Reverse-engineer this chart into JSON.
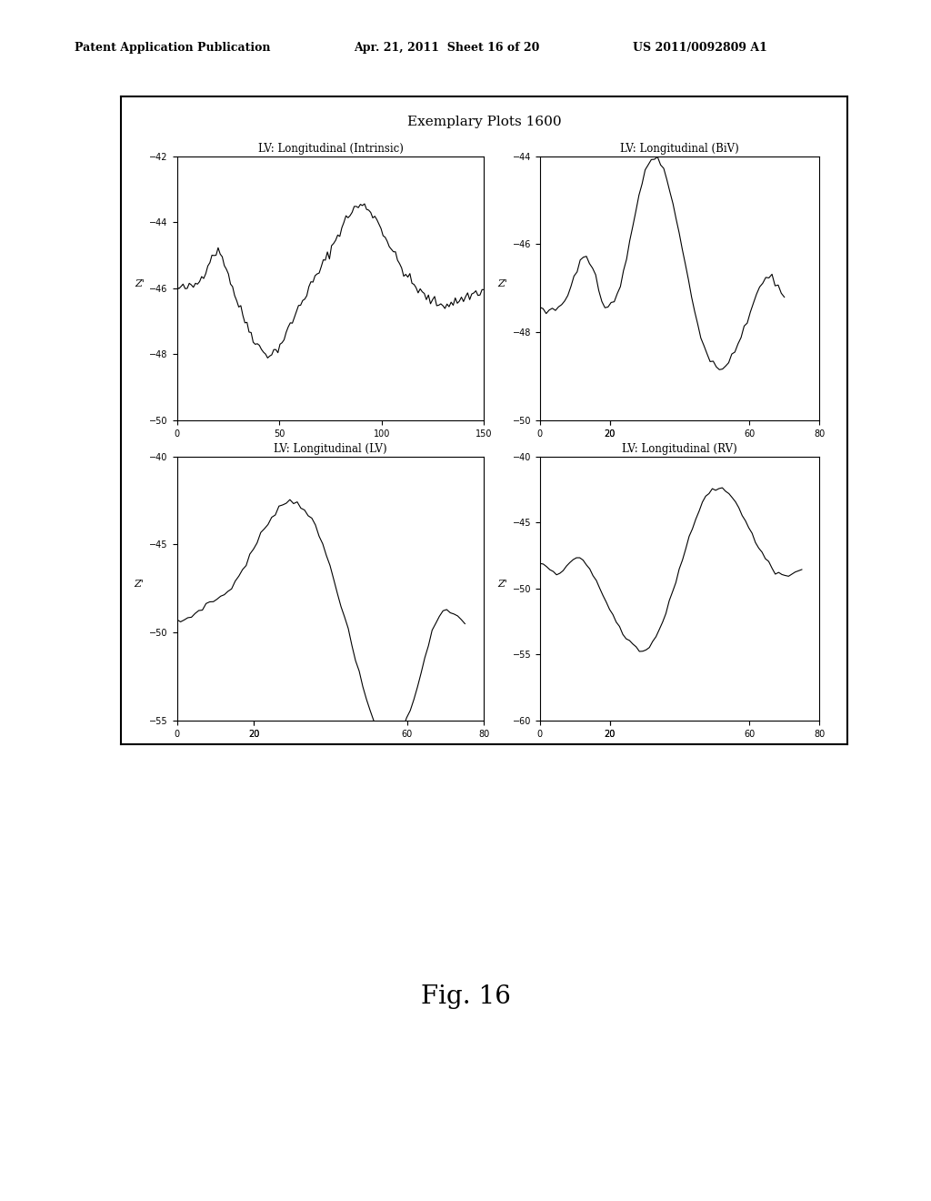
{
  "title": "Exemplary Plots 1600",
  "header_left": "Patent Application Publication",
  "header_mid": "Apr. 21, 2011  Sheet 16 of 20",
  "header_right": "US 2011/0092809 A1",
  "fig_label": "Fig. 16",
  "subplots": [
    {
      "title": "LV: Longitudinal (Intrinsic)",
      "ylabel": "Z'",
      "xlabel": "",
      "xlim": [
        0,
        150
      ],
      "ylim": [
        -50,
        -42
      ],
      "xticks": [
        0,
        50,
        100,
        150
      ],
      "yticks": [
        -50,
        -48,
        -46,
        -44,
        -42
      ]
    },
    {
      "title": "LV: Longitudinal (BiV)",
      "ylabel": "Z'",
      "xlabel": "",
      "xlim": [
        0,
        80
      ],
      "ylim": [
        -50,
        -44
      ],
      "xticks": [
        0,
        20,
        20,
        60,
        80
      ],
      "yticks": [
        -50,
        -48,
        -46,
        -44
      ]
    },
    {
      "title": "LV: Longitudinal (LV)",
      "ylabel": "Z'",
      "xlabel": "",
      "xlim": [
        0,
        80
      ],
      "ylim": [
        -55,
        -40
      ],
      "xticks": [
        0,
        20,
        20,
        60,
        80
      ],
      "yticks": [
        -55,
        -50,
        -45,
        -40
      ]
    },
    {
      "title": "LV: Longitudinal (RV)",
      "ylabel": "Z'",
      "xlabel": "",
      "xlim": [
        0,
        80
      ],
      "ylim": [
        -60,
        -40
      ],
      "xticks": [
        0,
        20,
        20,
        60,
        80
      ],
      "yticks": [
        -60,
        -55,
        -50,
        -45,
        -40
      ]
    }
  ],
  "background_color": "#ffffff",
  "line_color": "#000000"
}
